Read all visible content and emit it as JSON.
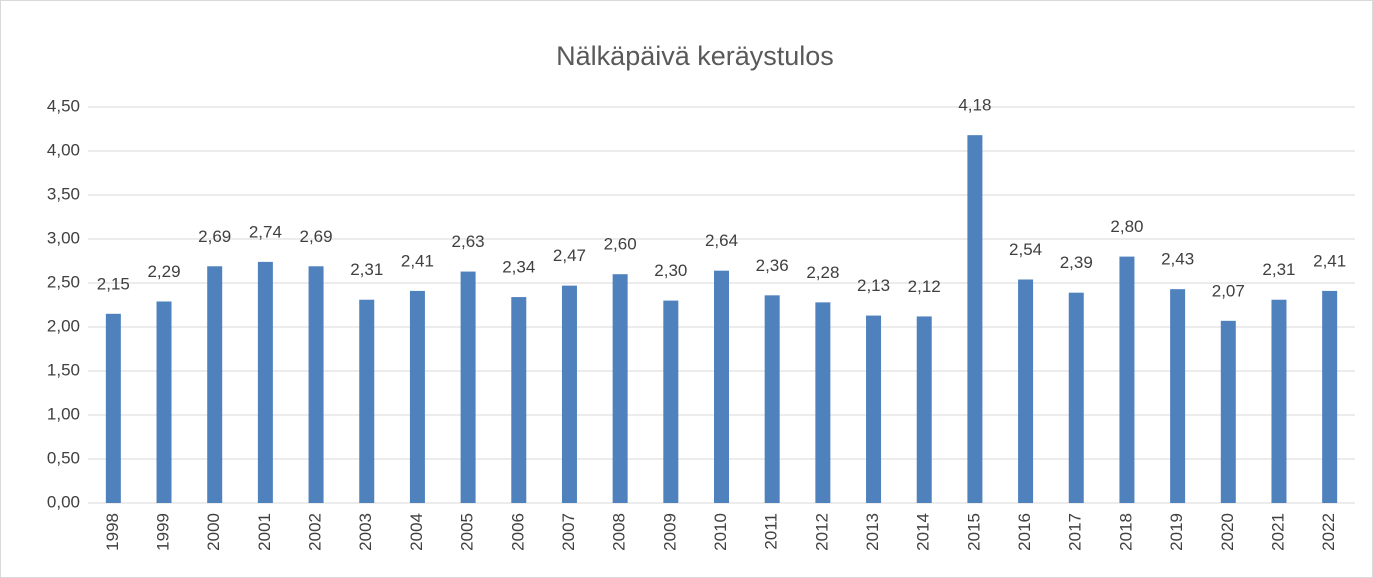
{
  "chart_data": {
    "type": "bar",
    "title": "Nälkäpäivä keräystulos",
    "categories": [
      "1998",
      "1999",
      "2000",
      "2001",
      "2002",
      "2003",
      "2004",
      "2005",
      "2006",
      "2007",
      "2008",
      "2009",
      "2010",
      "2011",
      "2012",
      "2013",
      "2014",
      "2015",
      "2016",
      "2017",
      "2018",
      "2019",
      "2020",
      "2021",
      "2022"
    ],
    "values": [
      2.15,
      2.29,
      2.69,
      2.74,
      2.69,
      2.31,
      2.41,
      2.63,
      2.34,
      2.47,
      2.6,
      2.3,
      2.64,
      2.36,
      2.28,
      2.13,
      2.12,
      4.18,
      2.54,
      2.39,
      2.8,
      2.43,
      2.07,
      2.31,
      2.41
    ],
    "value_labels": [
      "2,15",
      "2,29",
      "2,69",
      "2,74",
      "2,69",
      "2,31",
      "2,41",
      "2,63",
      "2,34",
      "2,47",
      "2,60",
      "2,30",
      "2,64",
      "2,36",
      "2,28",
      "2,13",
      "2,12",
      "4,18",
      "2,54",
      "2,39",
      "2,80",
      "2,43",
      "2,07",
      "2,31",
      "2,41"
    ],
    "color": "#4f81bd",
    "ylim": [
      0,
      4.5
    ],
    "yticks": [
      {
        "value": 0,
        "label": "0,00"
      },
      {
        "value": 0.5,
        "label": "0,50"
      },
      {
        "value": 1,
        "label": "1,00"
      },
      {
        "value": 1.5,
        "label": "1,50"
      },
      {
        "value": 2,
        "label": "2,00"
      },
      {
        "value": 2.5,
        "label": "2,50"
      },
      {
        "value": 3,
        "label": "3,00"
      },
      {
        "value": 3.5,
        "label": "3,50"
      },
      {
        "value": 4,
        "label": "4,00"
      },
      {
        "value": 4.5,
        "label": "4,50"
      }
    ],
    "grid": true
  }
}
